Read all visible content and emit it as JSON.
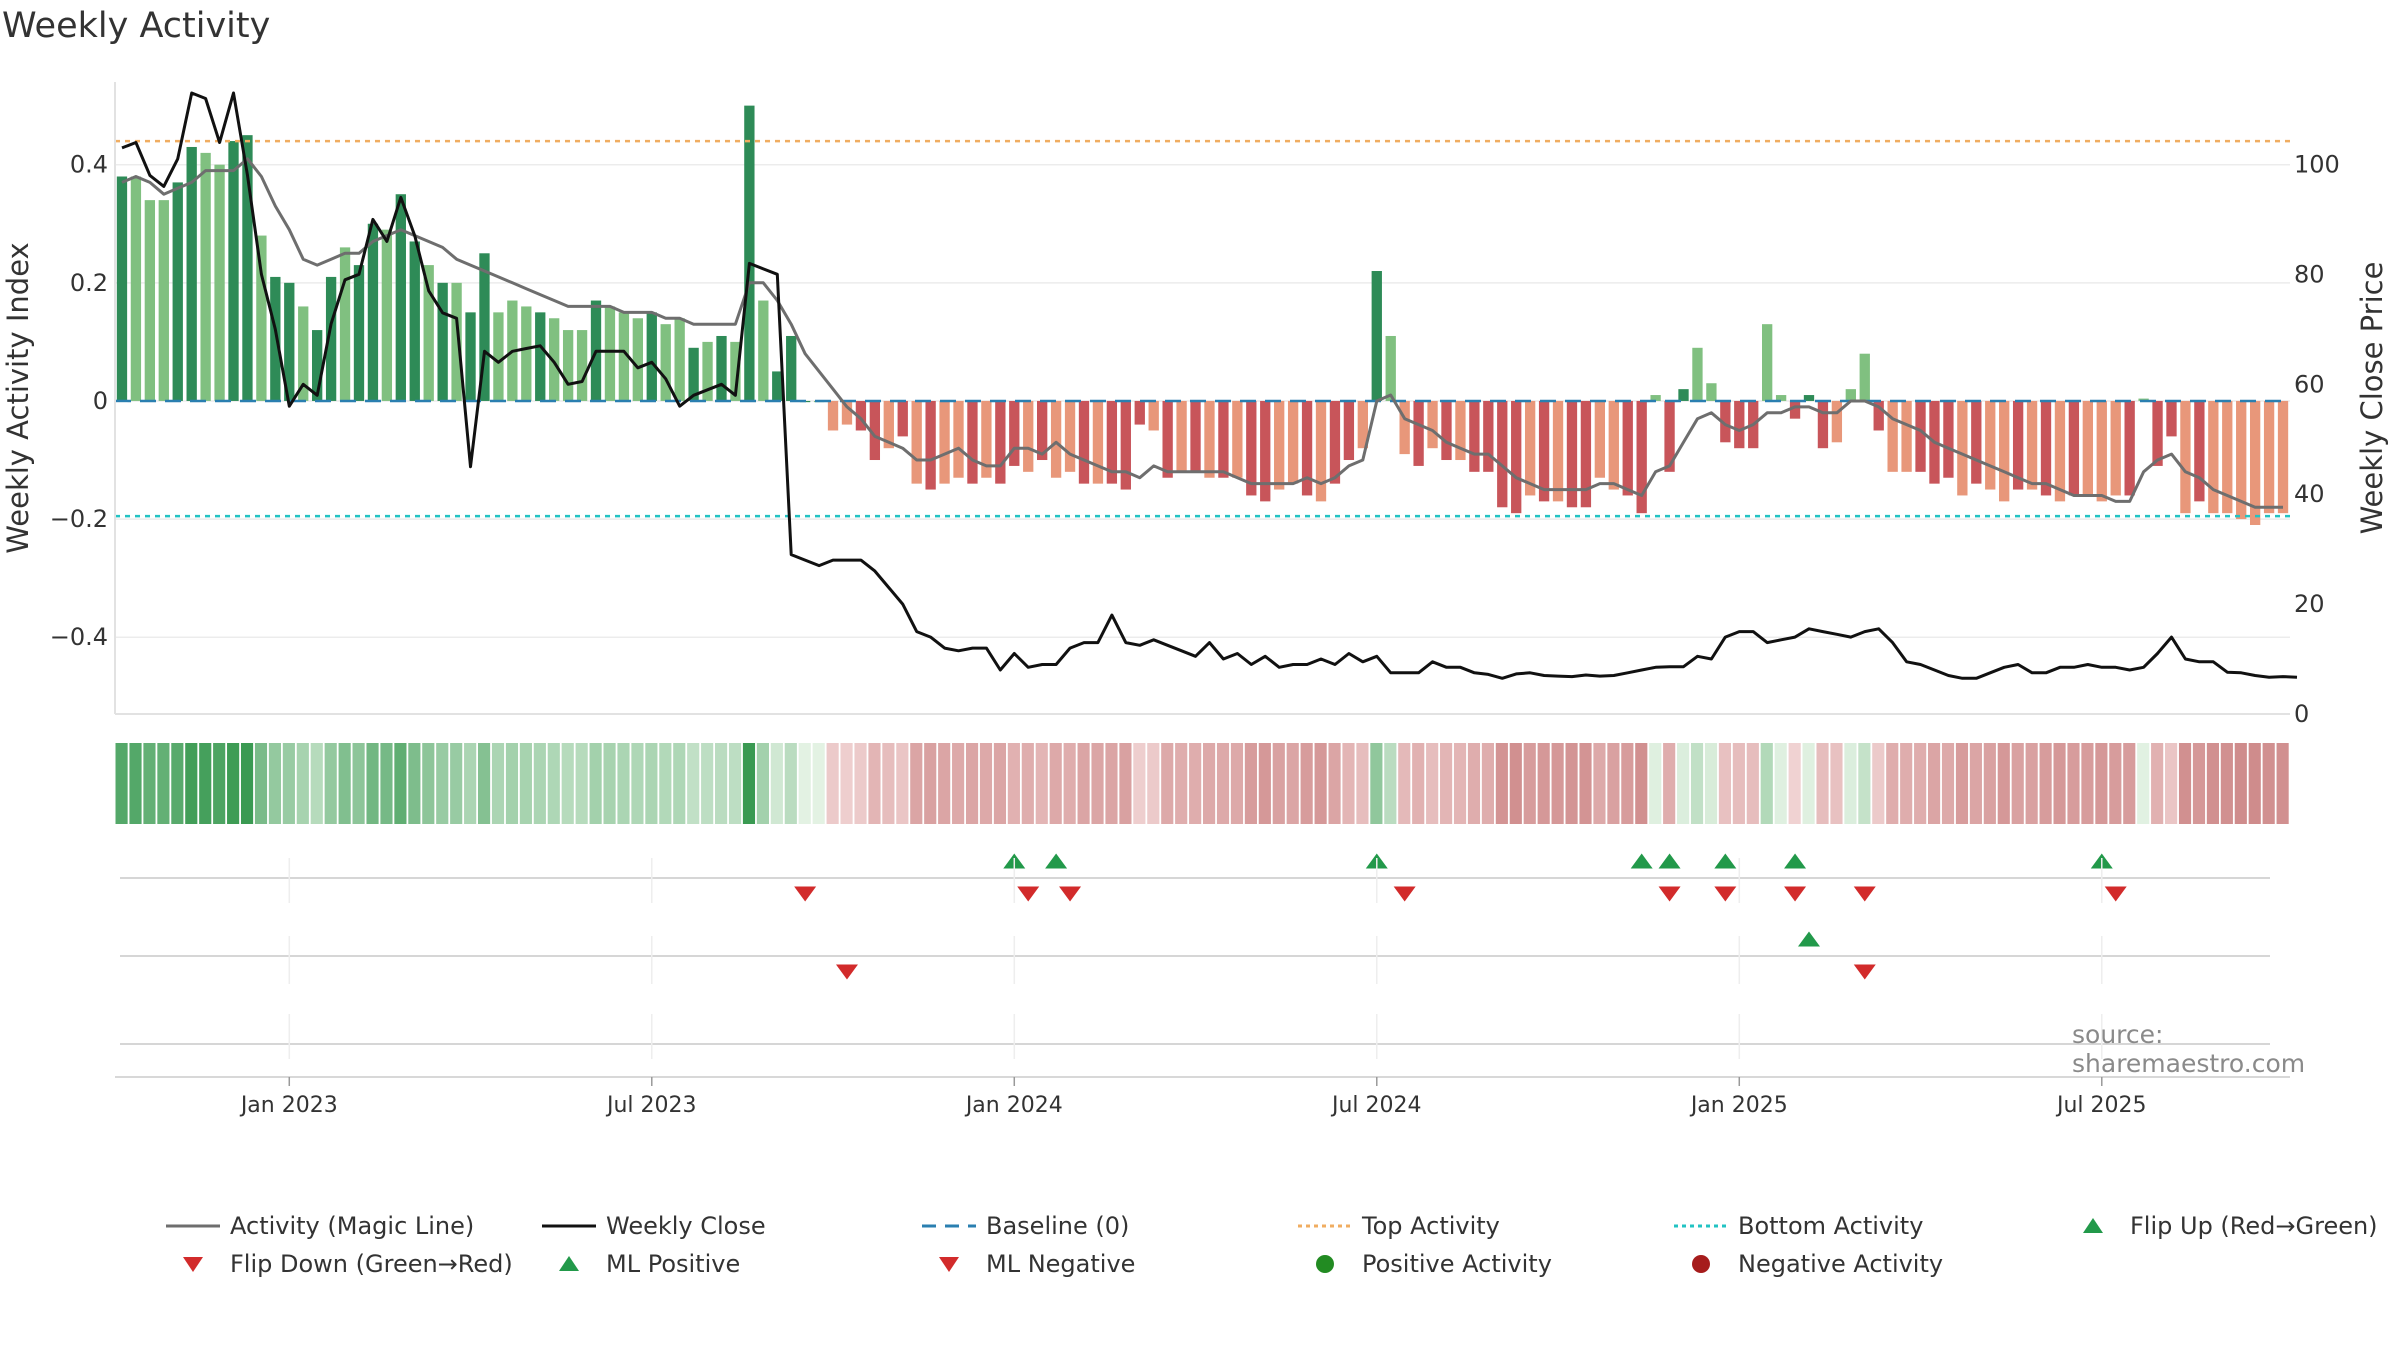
{
  "chart_data": {
    "type": "bar+line",
    "title": "Weekly Activity",
    "ylabel_left": "Weekly Activity Index",
    "ylabel_right": "Weekly Close Price",
    "ylim_left": [
      -0.53,
      0.54
    ],
    "ylim_right": [
      0,
      115
    ],
    "left_ticks": [
      {
        "v": 0.4,
        "label": "0.4"
      },
      {
        "v": 0.2,
        "label": "0.2"
      },
      {
        "v": 0,
        "label": "0"
      },
      {
        "v": -0.2,
        "label": "−0.2"
      },
      {
        "v": -0.4,
        "label": "−0.4"
      }
    ],
    "right_ticks": [
      {
        "v": 100,
        "label": "100"
      },
      {
        "v": 80,
        "label": "80"
      },
      {
        "v": 60,
        "label": "60"
      },
      {
        "v": 40,
        "label": "40"
      },
      {
        "v": 20,
        "label": "20"
      },
      {
        "v": 0,
        "label": "0"
      }
    ],
    "x_ticks": [
      {
        "week": 12,
        "label": "Jan 2023"
      },
      {
        "week": 38,
        "label": "Jul 2023"
      },
      {
        "week": 64,
        "label": "Jan 2024"
      },
      {
        "week": 90,
        "label": "Jul 2024"
      },
      {
        "week": 116,
        "label": "Jan 2025"
      },
      {
        "week": 142,
        "label": "Jul 2025"
      }
    ],
    "top_activity": 0.44,
    "bottom_activity": -0.195,
    "activity": [
      0.38,
      0.38,
      0.34,
      0.34,
      0.37,
      0.43,
      0.42,
      0.4,
      0.44,
      0.45,
      0.28,
      0.21,
      0.2,
      0.16,
      0.12,
      0.21,
      0.26,
      0.23,
      0.3,
      0.29,
      0.35,
      0.27,
      0.23,
      0.2,
      0.2,
      0.15,
      0.25,
      0.15,
      0.17,
      0.16,
      0.15,
      0.14,
      0.12,
      0.12,
      0.17,
      0.16,
      0.15,
      0.14,
      0.15,
      0.13,
      0.14,
      0.09,
      0.1,
      0.11,
      0.1,
      0.5,
      0.17,
      0.05,
      0.11,
      0,
      0,
      -0.05,
      -0.04,
      -0.05,
      -0.1,
      -0.08,
      -0.06,
      -0.14,
      -0.15,
      -0.14,
      -0.13,
      -0.14,
      -0.13,
      -0.14,
      -0.11,
      -0.12,
      -0.1,
      -0.13,
      -0.12,
      -0.14,
      -0.14,
      -0.14,
      -0.15,
      -0.04,
      -0.05,
      -0.13,
      -0.12,
      -0.12,
      -0.13,
      -0.13,
      -0.13,
      -0.16,
      -0.17,
      -0.15,
      -0.14,
      -0.16,
      -0.17,
      -0.14,
      -0.1,
      -0.08,
      0.22,
      0.11,
      -0.09,
      -0.11,
      -0.08,
      -0.1,
      -0.1,
      -0.12,
      -0.12,
      -0.18,
      -0.19,
      -0.16,
      -0.17,
      -0.17,
      -0.18,
      -0.18,
      -0.13,
      -0.15,
      -0.16,
      -0.19,
      0.01,
      -0.12,
      0.02,
      0.09,
      0.03,
      -0.07,
      -0.08,
      -0.08,
      0.13,
      0.01,
      -0.03,
      0.01,
      -0.08,
      -0.07,
      0.02,
      0.08,
      -0.05,
      -0.12,
      -0.12,
      -0.12,
      -0.14,
      -0.13,
      -0.16,
      -0.14,
      -0.15,
      -0.17,
      -0.15,
      -0.15,
      -0.16,
      -0.17,
      -0.16,
      -0.16,
      -0.17,
      -0.16,
      -0.16,
      0.004,
      -0.11,
      -0.06,
      -0.19,
      -0.17,
      -0.19,
      -0.19,
      -0.2,
      -0.21,
      -0.19,
      -0.19
    ],
    "strong_bars": [
      0,
      4,
      5,
      8,
      9,
      11,
      12,
      14,
      15,
      17,
      18,
      20,
      21,
      23,
      25,
      26,
      30,
      34,
      38,
      41,
      43,
      45,
      47,
      48,
      49,
      53,
      54,
      56,
      58,
      61,
      63,
      64,
      66,
      69,
      71,
      72,
      73,
      75,
      77,
      79,
      81,
      82,
      85,
      87,
      88,
      90,
      93,
      95,
      97,
      98,
      99,
      100,
      102,
      104,
      105,
      108,
      109,
      111,
      112,
      115,
      116,
      117,
      120,
      121,
      122,
      126,
      129,
      130,
      131,
      133,
      136,
      138,
      140,
      144,
      146,
      147,
      149
    ],
    "magic_line": [
      0.37,
      0.38,
      0.37,
      0.35,
      0.36,
      0.37,
      0.39,
      0.39,
      0.39,
      0.41,
      0.38,
      0.33,
      0.29,
      0.24,
      0.23,
      0.24,
      0.25,
      0.25,
      0.27,
      0.28,
      0.29,
      0.28,
      0.27,
      0.26,
      0.24,
      0.23,
      0.22,
      0.21,
      0.2,
      0.19,
      0.18,
      0.17,
      0.16,
      0.16,
      0.16,
      0.16,
      0.15,
      0.15,
      0.15,
      0.14,
      0.14,
      0.13,
      0.13,
      0.13,
      0.13,
      0.2,
      0.2,
      0.17,
      0.13,
      0.08,
      0.05,
      0.02,
      -0.01,
      -0.03,
      -0.06,
      -0.07,
      -0.08,
      -0.1,
      -0.1,
      -0.09,
      -0.08,
      -0.1,
      -0.11,
      -0.11,
      -0.08,
      -0.08,
      -0.09,
      -0.07,
      -0.09,
      -0.1,
      -0.11,
      -0.12,
      -0.12,
      -0.13,
      -0.11,
      -0.12,
      -0.12,
      -0.12,
      -0.12,
      -0.12,
      -0.13,
      -0.14,
      -0.14,
      -0.14,
      -0.14,
      -0.13,
      -0.14,
      -0.13,
      -0.11,
      -0.1,
      0,
      0.01,
      -0.03,
      -0.04,
      -0.05,
      -0.07,
      -0.08,
      -0.09,
      -0.09,
      -0.11,
      -0.13,
      -0.14,
      -0.15,
      -0.15,
      -0.15,
      -0.15,
      -0.14,
      -0.14,
      -0.15,
      -0.16,
      -0.12,
      -0.11,
      -0.07,
      -0.03,
      -0.02,
      -0.04,
      -0.05,
      -0.04,
      -0.02,
      -0.02,
      -0.01,
      -0.01,
      -0.02,
      -0.02,
      0,
      0,
      -0.01,
      -0.03,
      -0.04,
      -0.05,
      -0.07,
      -0.08,
      -0.09,
      -0.1,
      -0.11,
      -0.12,
      -0.13,
      -0.14,
      -0.14,
      -0.15,
      -0.16,
      -0.16,
      -0.16,
      -0.17,
      -0.17,
      -0.12,
      -0.1,
      -0.09,
      -0.12,
      -0.13,
      -0.15,
      -0.16,
      -0.17,
      -0.18,
      -0.18,
      -0.18
    ],
    "weekly_close": [
      103,
      104,
      98,
      96,
      101,
      113,
      112,
      104,
      113,
      98,
      80,
      70,
      56,
      60,
      58,
      71,
      79,
      80,
      90,
      86,
      94,
      87,
      77,
      73,
      72,
      45,
      66,
      64,
      66,
      66.5,
      67,
      64,
      60,
      60.5,
      66,
      66,
      66,
      63,
      64,
      61,
      56,
      58,
      59,
      60,
      58,
      82,
      81,
      80,
      29,
      28,
      27,
      28,
      28,
      28,
      26,
      23,
      20,
      15,
      14,
      12,
      11.5,
      12,
      12,
      8,
      11,
      8.5,
      9,
      9,
      12,
      13,
      13,
      18,
      13,
      12.5,
      13.5,
      12.5,
      11.5,
      10.5,
      13,
      10,
      11,
      9,
      10.5,
      8.5,
      9,
      9,
      10,
      9,
      11,
      9.5,
      10.5,
      7.5,
      7.5,
      7.5,
      9.5,
      8.5,
      8.5,
      7.5,
      7.2,
      6.5,
      7.3,
      7.5,
      7,
      6.9,
      6.8,
      7.1,
      6.9,
      7,
      7.5,
      8,
      8.5,
      8.6,
      8.6,
      10.5,
      10,
      14,
      15,
      15,
      13,
      13.5,
      14,
      15.5,
      15,
      14.5,
      14,
      15,
      15.5,
      13,
      9.5,
      9,
      8,
      7,
      6.5,
      6.5,
      7.5,
      8.5,
      9,
      7.5,
      7.5,
      8.5,
      8.5,
      9,
      8.5,
      8.5,
      8,
      8.5,
      11,
      14,
      10,
      9.5,
      9.5,
      7.6,
      7.5,
      7,
      6.7,
      6.8,
      6.7
    ],
    "flip_up_weeks": [
      64,
      67,
      90,
      109,
      111,
      115,
      120,
      142
    ],
    "flip_down_weeks": [
      49,
      65,
      68,
      92,
      111,
      115,
      120,
      125,
      143
    ],
    "ml_positive_weeks": [
      121
    ],
    "ml_negative_weeks": [
      52,
      125
    ],
    "legend": [
      {
        "label": "Activity (Magic Line)",
        "symbol": "line",
        "color": "#6e6e6e"
      },
      {
        "label": "Weekly Close",
        "symbol": "line",
        "color": "#111111"
      },
      {
        "label": "Baseline (0)",
        "symbol": "dash",
        "color": "#2a7fb0"
      },
      {
        "label": "Top Activity",
        "symbol": "dot",
        "color": "#f0ad61"
      },
      {
        "label": "Bottom Activity",
        "symbol": "dot",
        "color": "#22c3c3"
      },
      {
        "label": "Flip Up (Red→Green)",
        "symbol": "tri-up",
        "color": "#22994a"
      },
      {
        "label": "Flip Down (Green→Red)",
        "symbol": "tri-down",
        "color": "#d22b2b"
      },
      {
        "label": "ML Positive",
        "symbol": "tri-up",
        "color": "#22994a"
      },
      {
        "label": "ML Negative",
        "symbol": "tri-down",
        "color": "#d22b2b"
      },
      {
        "label": "Positive Activity",
        "symbol": "circle",
        "color": "#228b22"
      },
      {
        "label": "Negative Activity",
        "symbol": "circle",
        "color": "#a61c1c"
      }
    ]
  },
  "watermark": "source: sharemaestro.com",
  "colors": {
    "pos_strong": "#2e8b57",
    "pos_light": "#80c080",
    "neg_strong": "#c8555a",
    "neg_light": "#e8977a",
    "magic_line": "#6e6e6e",
    "close_line": "#111111",
    "baseline": "#2a7fb0",
    "top_activity": "#f0ad61",
    "bottom_activity": "#22c3c3",
    "flip_up": "#22994a",
    "flip_down": "#d22b2b"
  }
}
